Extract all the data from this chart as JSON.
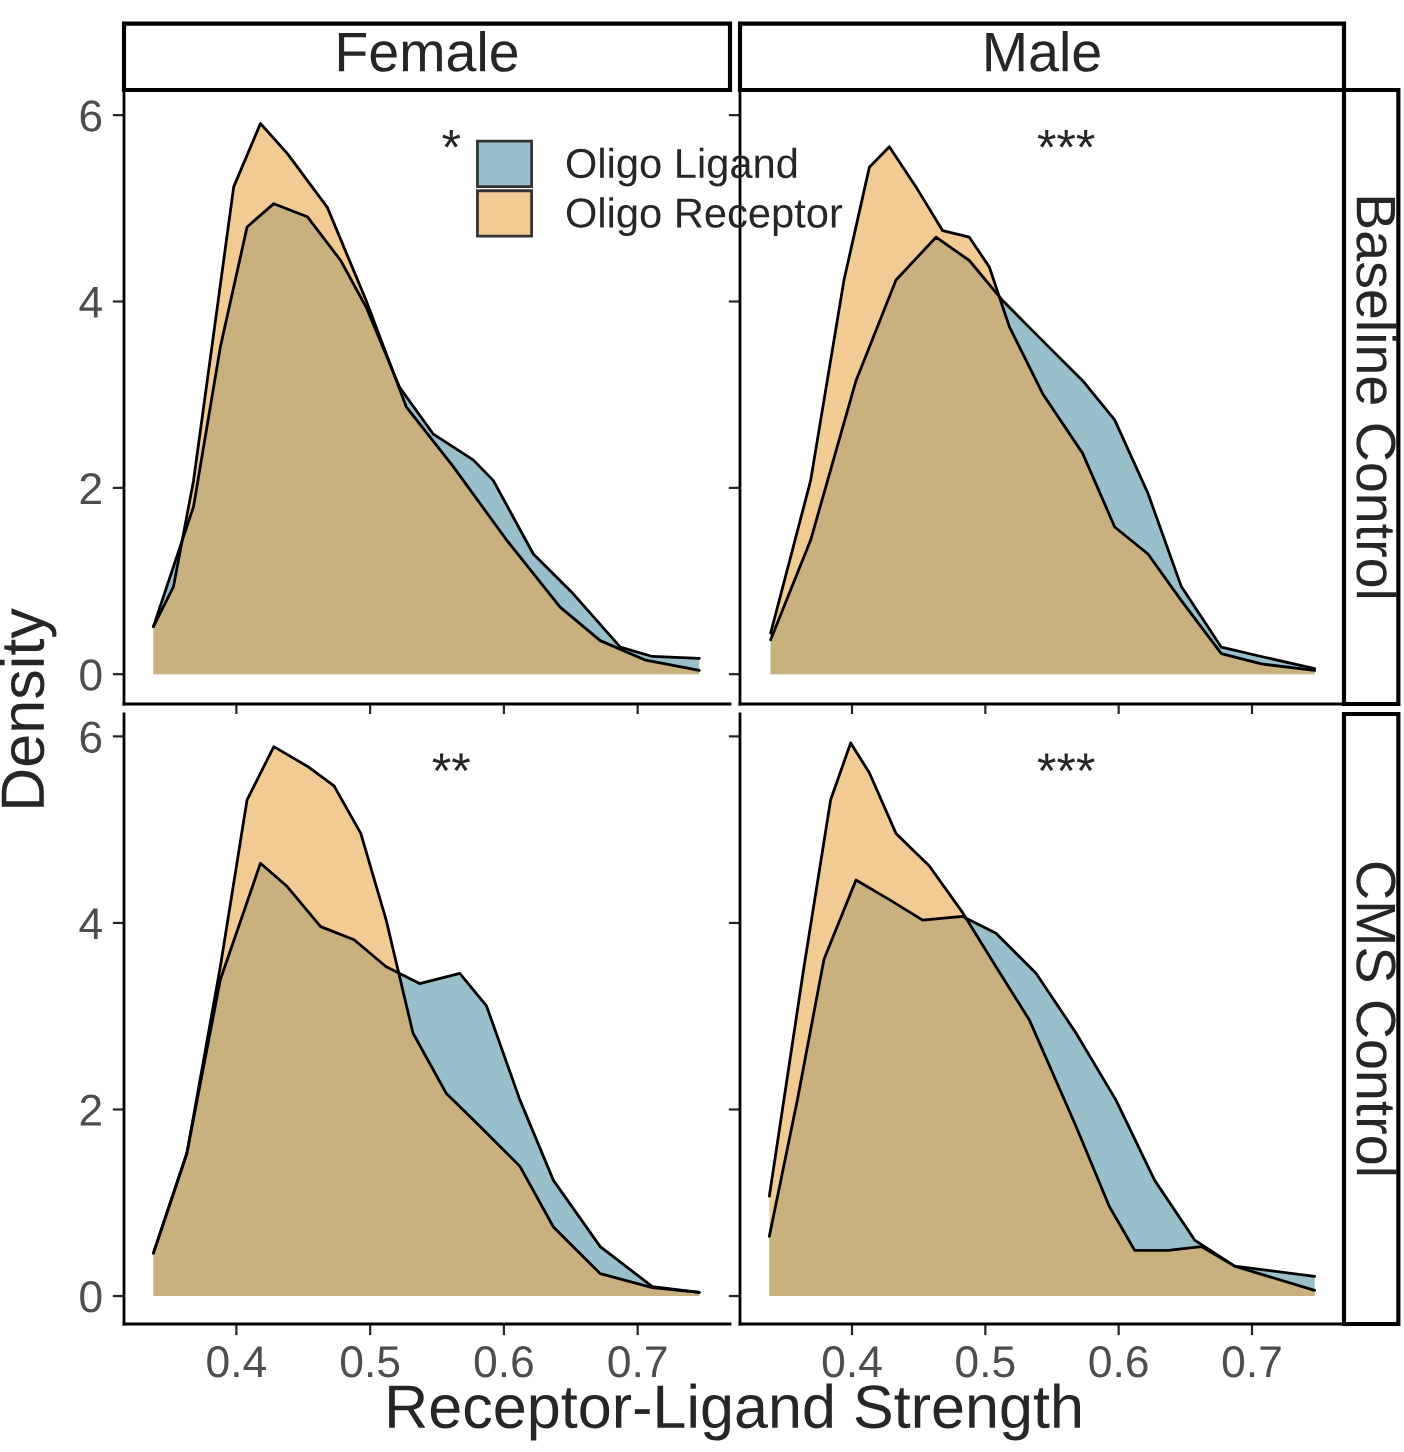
{
  "chart_data": [
    {
      "type": "area",
      "title": "Female",
      "ylabel": "Density",
      "legend": "top right",
      "tick_labels": "y",
      "xlim": [
        0.316,
        0.769
      ],
      "ylim": [
        -0.32,
        6.27
      ],
      "xticks": [
        0.4,
        0.5,
        0.6,
        0.7
      ],
      "yticks": [
        0,
        2,
        4,
        6
      ],
      "annotations": [
        "*"
      ],
      "series": [
        {
          "name": "Oligo Ligand",
          "color": "#98bfca",
          "x": [
            0.338,
            0.368,
            0.388,
            0.408,
            0.428,
            0.453,
            0.478,
            0.497,
            0.522,
            0.547,
            0.577,
            0.592,
            0.622,
            0.652,
            0.687,
            0.711,
            0.746
          ],
          "values": [
            0.51,
            1.8,
            3.51,
            4.8,
            5.05,
            4.91,
            4.44,
            3.94,
            3.08,
            2.58,
            2.3,
            2.08,
            1.29,
            0.86,
            0.29,
            0.19,
            0.17
          ]
        },
        {
          "name": "Oligo Receptor",
          "color": "#f1cb93",
          "x": [
            0.338,
            0.353,
            0.368,
            0.383,
            0.398,
            0.418,
            0.438,
            0.468,
            0.497,
            0.527,
            0.562,
            0.602,
            0.642,
            0.672,
            0.706,
            0.746
          ],
          "values": [
            0.51,
            0.94,
            2.08,
            3.65,
            5.23,
            5.91,
            5.59,
            5.01,
            4.01,
            2.87,
            2.23,
            1.44,
            0.72,
            0.36,
            0.15,
            0.04
          ]
        }
      ]
    },
    {
      "type": "area",
      "title": "Male",
      "y2label": "Baseline Control",
      "tick_labels": false,
      "xlim": [
        0.316,
        0.769
      ],
      "ylim": [
        -0.32,
        6.27
      ],
      "xticks": [
        0.4,
        0.5,
        0.6,
        0.7
      ],
      "yticks": [
        0,
        2,
        4,
        6
      ],
      "annotations": [
        "***"
      ],
      "series": [
        {
          "color": "#98bfca",
          "x": [
            0.339,
            0.369,
            0.403,
            0.433,
            0.463,
            0.488,
            0.513,
            0.538,
            0.573,
            0.597,
            0.622,
            0.647,
            0.677,
            0.707,
            0.747
          ],
          "values": [
            0.37,
            1.44,
            3.15,
            4.23,
            4.69,
            4.44,
            4.01,
            3.65,
            3.15,
            2.73,
            1.94,
            0.94,
            0.29,
            0.19,
            0.06
          ]
        },
        {
          "color": "#f1cb93",
          "x": [
            0.339,
            0.369,
            0.394,
            0.413,
            0.428,
            0.448,
            0.468,
            0.488,
            0.503,
            0.518,
            0.543,
            0.573,
            0.597,
            0.622,
            0.647,
            0.677,
            0.707,
            0.747
          ],
          "values": [
            0.44,
            2.08,
            4.23,
            5.44,
            5.66,
            5.23,
            4.76,
            4.69,
            4.37,
            3.73,
            3.01,
            2.37,
            1.58,
            1.29,
            0.79,
            0.22,
            0.11,
            0.04
          ]
        }
      ]
    },
    {
      "type": "area",
      "xlabel": "Receptor-Ligand Strength",
      "xlim": [
        0.316,
        0.769
      ],
      "ylim": [
        -0.3,
        6.24
      ],
      "xticks": [
        0.4,
        0.5,
        0.6,
        0.7
      ],
      "yticks": [
        0,
        2,
        4,
        6
      ],
      "annotations": [
        "**"
      ],
      "series": [
        {
          "color": "#98bfca",
          "x": [
            0.338,
            0.363,
            0.388,
            0.418,
            0.438,
            0.463,
            0.488,
            0.512,
            0.537,
            0.567,
            0.587,
            0.612,
            0.637,
            0.672,
            0.711,
            0.746
          ],
          "values": [
            0.46,
            1.53,
            3.39,
            4.64,
            4.39,
            3.96,
            3.82,
            3.53,
            3.35,
            3.46,
            3.11,
            2.1,
            1.24,
            0.53,
            0.1,
            0.04
          ]
        },
        {
          "color": "#f1cb93",
          "x": [
            0.338,
            0.363,
            0.388,
            0.408,
            0.428,
            0.453,
            0.473,
            0.493,
            0.512,
            0.532,
            0.557,
            0.582,
            0.612,
            0.637,
            0.672,
            0.711,
            0.746
          ],
          "values": [
            0.46,
            1.53,
            3.53,
            5.32,
            5.89,
            5.68,
            5.47,
            4.96,
            4.03,
            2.82,
            2.17,
            1.82,
            1.39,
            0.74,
            0.24,
            0.09,
            0.04
          ]
        }
      ]
    },
    {
      "type": "area",
      "y2label": "CMS Control",
      "tick_labels": "x",
      "xlim": [
        0.316,
        0.769
      ],
      "ylim": [
        -0.3,
        6.24
      ],
      "xticks": [
        0.4,
        0.5,
        0.6,
        0.7
      ],
      "yticks": [
        0,
        2,
        4,
        6
      ],
      "annotations": [
        "***"
      ],
      "series": [
        {
          "color": "#98bfca",
          "x": [
            0.338,
            0.359,
            0.379,
            0.403,
            0.428,
            0.453,
            0.483,
            0.508,
            0.538,
            0.568,
            0.598,
            0.627,
            0.657,
            0.687,
            0.747
          ],
          "values": [
            0.64,
            2.1,
            3.61,
            4.46,
            4.25,
            4.03,
            4.07,
            3.89,
            3.46,
            2.82,
            2.1,
            1.24,
            0.6,
            0.32,
            0.21
          ]
        },
        {
          "color": "#f1cb93",
          "x": [
            0.338,
            0.364,
            0.384,
            0.399,
            0.413,
            0.433,
            0.458,
            0.483,
            0.508,
            0.533,
            0.568,
            0.593,
            0.612,
            0.637,
            0.662,
            0.687,
            0.747
          ],
          "values": [
            1.07,
            3.53,
            5.32,
            5.93,
            5.61,
            4.96,
            4.61,
            4.11,
            3.53,
            2.96,
            1.82,
            0.96,
            0.49,
            0.49,
            0.53,
            0.32,
            0.06
          ]
        }
      ]
    }
  ]
}
